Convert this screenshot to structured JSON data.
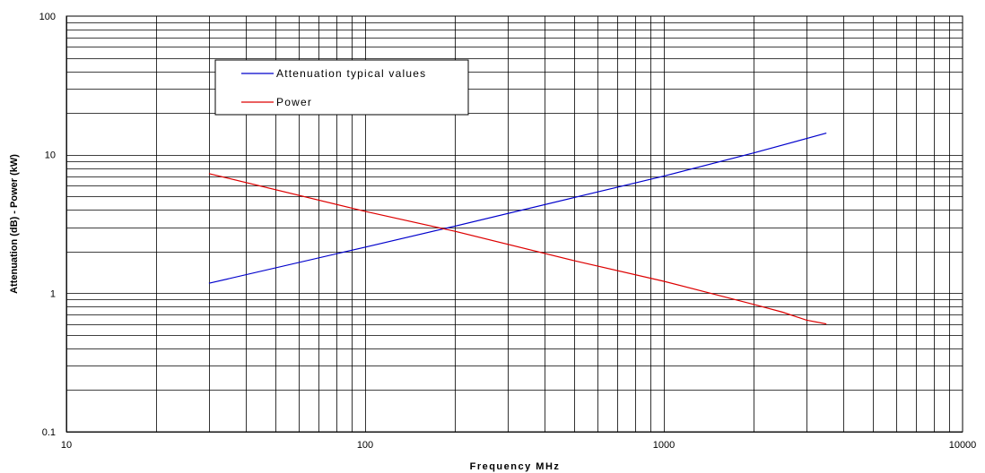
{
  "chart_data": {
    "type": "line",
    "title": "",
    "xlabel": "Frequency MHz",
    "ylabel": "Attenuation (dB) - Power (kW)",
    "x_scale": "log",
    "y_scale": "log",
    "xlim": [
      10,
      10000
    ],
    "ylim": [
      0.1,
      100
    ],
    "x_ticks": [
      {
        "value": 10,
        "label": "10"
      },
      {
        "value": 100,
        "label": "100"
      },
      {
        "value": 1000,
        "label": "1000"
      },
      {
        "value": 10000,
        "label": "10000"
      }
    ],
    "y_ticks": [
      {
        "value": 0.1,
        "label": "0.1"
      },
      {
        "value": 1,
        "label": "1"
      },
      {
        "value": 10,
        "label": "10"
      },
      {
        "value": 100,
        "label": "100"
      }
    ],
    "grid": true,
    "legend_position": "top-left",
    "series": [
      {
        "name": "Attenuation typical values",
        "color": "#0000cc",
        "x": [
          30,
          100,
          200,
          500,
          1000,
          2000,
          3500
        ],
        "y": [
          1.18,
          2.15,
          3.05,
          4.9,
          7.0,
          10.3,
          14.3
        ]
      },
      {
        "name": "Power",
        "color": "#dd0000",
        "x": [
          30,
          100,
          200,
          500,
          1000,
          2000,
          2500,
          3000,
          3500
        ],
        "y": [
          7.3,
          3.9,
          2.8,
          1.72,
          1.22,
          0.83,
          0.73,
          0.64,
          0.6
        ]
      }
    ]
  }
}
